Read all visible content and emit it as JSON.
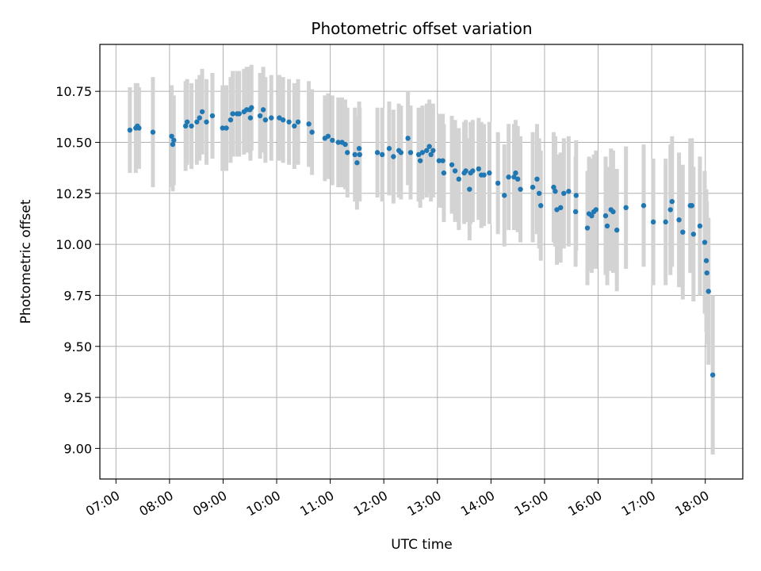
{
  "chart_data": {
    "type": "scatter",
    "title": "Photometric offset variation",
    "xlabel": "UTC time",
    "ylabel": "Photometric offset",
    "x_unit": "hour",
    "xlim": [
      6.7,
      18.7
    ],
    "ylim": [
      8.85,
      10.98
    ],
    "x_ticks": [
      7,
      8,
      9,
      10,
      11,
      12,
      13,
      14,
      15,
      16,
      17,
      18
    ],
    "x_tick_labels": [
      "07:00",
      "08:00",
      "09:00",
      "10:00",
      "11:00",
      "12:00",
      "13:00",
      "14:00",
      "15:00",
      "16:00",
      "17:00",
      "18:00"
    ],
    "y_ticks": [
      9.0,
      9.25,
      9.5,
      9.75,
      10.0,
      10.25,
      10.5,
      10.75
    ],
    "y_tick_labels": [
      "9.00",
      "9.25",
      "9.50",
      "9.75",
      "10.00",
      "10.25",
      "10.50",
      "10.75"
    ],
    "grid": true,
    "point_color": "#1f77b4",
    "errorbar_color": "#d3d3d3",
    "series": [
      {
        "points": [
          [
            7.26,
            10.56,
            0.21
          ],
          [
            7.37,
            10.57,
            0.22
          ],
          [
            7.4,
            10.58,
            0.21
          ],
          [
            7.43,
            10.57,
            0.2
          ],
          [
            7.69,
            10.55,
            0.27
          ],
          [
            8.04,
            10.53,
            0.25
          ],
          [
            8.06,
            10.49,
            0.23
          ],
          [
            8.08,
            10.51,
            0.22
          ],
          [
            8.3,
            10.58,
            0.22
          ],
          [
            8.33,
            10.6,
            0.21
          ],
          [
            8.41,
            10.58,
            0.21
          ],
          [
            8.51,
            10.6,
            0.21
          ],
          [
            8.56,
            10.62,
            0.21
          ],
          [
            8.61,
            10.65,
            0.21
          ],
          [
            8.69,
            10.6,
            0.21
          ],
          [
            8.8,
            10.63,
            0.21
          ],
          [
            8.99,
            10.57,
            0.21
          ],
          [
            9.06,
            10.57,
            0.21
          ],
          [
            9.14,
            10.61,
            0.21
          ],
          [
            9.18,
            10.64,
            0.21
          ],
          [
            9.26,
            10.64,
            0.21
          ],
          [
            9.3,
            10.64,
            0.21
          ],
          [
            9.39,
            10.65,
            0.21
          ],
          [
            9.44,
            10.66,
            0.21
          ],
          [
            9.5,
            10.66,
            0.21
          ],
          [
            9.53,
            10.67,
            0.21
          ],
          [
            9.51,
            10.62,
            0.21
          ],
          [
            9.69,
            10.63,
            0.21
          ],
          [
            9.75,
            10.66,
            0.21
          ],
          [
            9.79,
            10.61,
            0.21
          ],
          [
            9.9,
            10.62,
            0.21
          ],
          [
            10.05,
            10.62,
            0.21
          ],
          [
            10.12,
            10.61,
            0.21
          ],
          [
            10.23,
            10.6,
            0.21
          ],
          [
            10.33,
            10.58,
            0.21
          ],
          [
            10.4,
            10.6,
            0.21
          ],
          [
            10.6,
            10.59,
            0.21
          ],
          [
            10.66,
            10.55,
            0.21
          ],
          [
            10.9,
            10.52,
            0.21
          ],
          [
            10.96,
            10.53,
            0.21
          ],
          [
            11.04,
            10.51,
            0.22
          ],
          [
            11.15,
            10.5,
            0.22
          ],
          [
            11.22,
            10.5,
            0.22
          ],
          [
            11.28,
            10.49,
            0.22
          ],
          [
            11.32,
            10.45,
            0.22
          ],
          [
            11.46,
            10.44,
            0.23
          ],
          [
            11.5,
            10.4,
            0.23
          ],
          [
            11.54,
            10.47,
            0.23
          ],
          [
            11.55,
            10.44,
            0.23
          ],
          [
            11.88,
            10.45,
            0.22
          ],
          [
            11.97,
            10.44,
            0.23
          ],
          [
            12.1,
            10.47,
            0.23
          ],
          [
            12.18,
            10.43,
            0.23
          ],
          [
            12.28,
            10.46,
            0.23
          ],
          [
            12.32,
            10.45,
            0.23
          ],
          [
            12.45,
            10.52,
            0.23
          ],
          [
            12.5,
            10.45,
            0.23
          ],
          [
            12.65,
            10.44,
            0.23
          ],
          [
            12.68,
            10.41,
            0.23
          ],
          [
            12.72,
            10.45,
            0.23
          ],
          [
            12.8,
            10.46,
            0.23
          ],
          [
            12.85,
            10.48,
            0.23
          ],
          [
            12.88,
            10.44,
            0.23
          ],
          [
            12.92,
            10.46,
            0.23
          ],
          [
            13.03,
            10.41,
            0.23
          ],
          [
            13.1,
            10.41,
            0.23
          ],
          [
            13.12,
            10.35,
            0.24
          ],
          [
            13.27,
            10.39,
            0.24
          ],
          [
            13.33,
            10.36,
            0.25
          ],
          [
            13.4,
            10.32,
            0.25
          ],
          [
            13.5,
            10.35,
            0.25
          ],
          [
            13.53,
            10.36,
            0.25
          ],
          [
            13.6,
            10.27,
            0.25
          ],
          [
            13.62,
            10.35,
            0.25
          ],
          [
            13.66,
            10.36,
            0.25
          ],
          [
            13.77,
            10.37,
            0.25
          ],
          [
            13.82,
            10.34,
            0.26
          ],
          [
            13.87,
            10.34,
            0.25
          ],
          [
            13.97,
            10.35,
            0.25
          ],
          [
            14.13,
            10.3,
            0.25
          ],
          [
            14.25,
            10.24,
            0.25
          ],
          [
            14.33,
            10.33,
            0.26
          ],
          [
            14.43,
            10.33,
            0.26
          ],
          [
            14.46,
            10.35,
            0.26
          ],
          [
            14.5,
            10.32,
            0.26
          ],
          [
            14.55,
            10.27,
            0.26
          ],
          [
            14.78,
            10.28,
            0.27
          ],
          [
            14.86,
            10.32,
            0.27
          ],
          [
            14.9,
            10.25,
            0.27
          ],
          [
            14.93,
            10.19,
            0.27
          ],
          [
            15.17,
            10.28,
            0.27
          ],
          [
            15.2,
            10.26,
            0.27
          ],
          [
            15.23,
            10.17,
            0.27
          ],
          [
            15.3,
            10.18,
            0.27
          ],
          [
            15.36,
            10.25,
            0.27
          ],
          [
            15.45,
            10.26,
            0.27
          ],
          [
            15.58,
            10.16,
            0.27
          ],
          [
            15.59,
            10.24,
            0.27
          ],
          [
            15.8,
            10.08,
            0.28
          ],
          [
            15.83,
            10.15,
            0.28
          ],
          [
            15.88,
            10.14,
            0.28
          ],
          [
            15.92,
            10.16,
            0.28
          ],
          [
            15.96,
            10.17,
            0.29
          ],
          [
            16.14,
            10.14,
            0.29
          ],
          [
            16.17,
            10.09,
            0.29
          ],
          [
            16.24,
            10.17,
            0.3
          ],
          [
            16.28,
            10.16,
            0.3
          ],
          [
            16.35,
            10.07,
            0.3
          ],
          [
            16.52,
            10.18,
            0.3
          ],
          [
            16.85,
            10.19,
            0.3
          ],
          [
            17.03,
            10.11,
            0.31
          ],
          [
            17.26,
            10.11,
            0.31
          ],
          [
            17.35,
            10.17,
            0.32
          ],
          [
            17.38,
            10.21,
            0.32
          ],
          [
            17.51,
            10.12,
            0.33
          ],
          [
            17.58,
            10.06,
            0.33
          ],
          [
            17.72,
            10.19,
            0.33
          ],
          [
            17.75,
            10.19,
            0.33
          ],
          [
            17.78,
            10.05,
            0.33
          ],
          [
            17.9,
            10.09,
            0.34
          ],
          [
            17.99,
            10.01,
            0.35
          ],
          [
            18.02,
            9.92,
            0.35
          ],
          [
            18.03,
            9.86,
            0.35
          ],
          [
            18.06,
            9.77,
            0.36
          ],
          [
            18.14,
            9.36,
            0.39
          ]
        ]
      }
    ]
  }
}
